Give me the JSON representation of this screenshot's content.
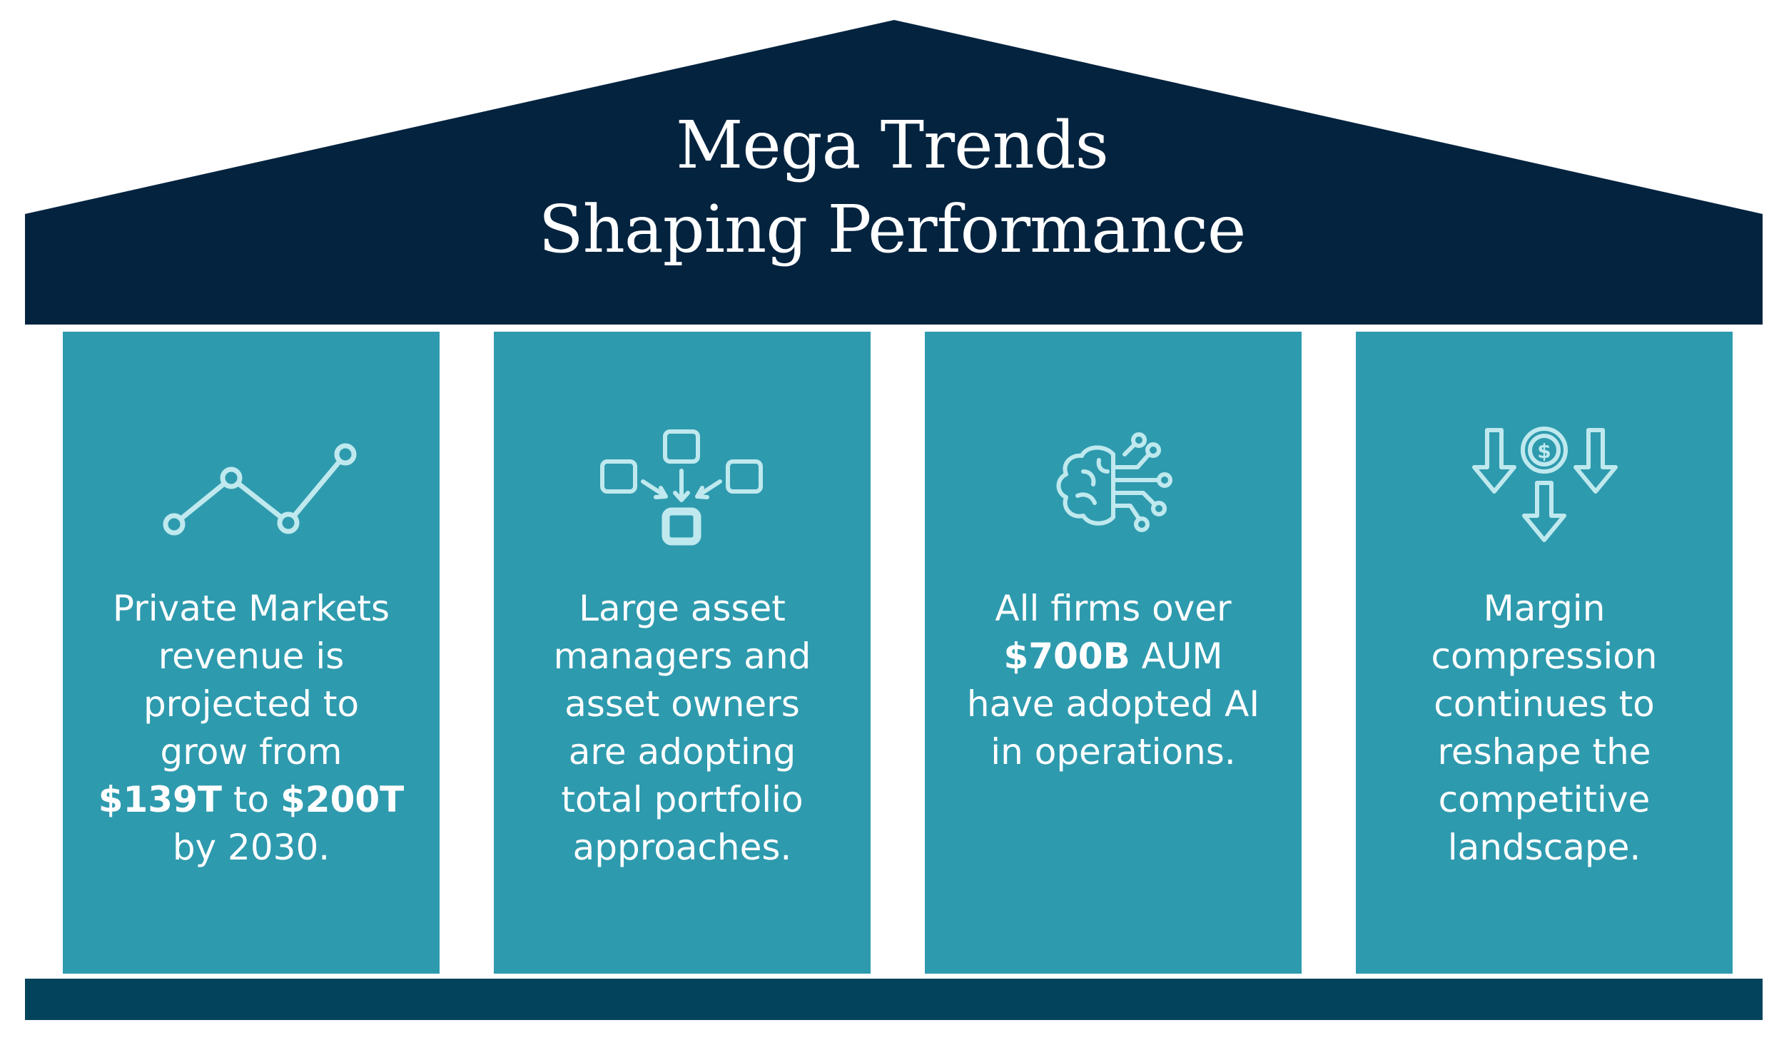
{
  "header": {
    "title_line1": "Mega Trends",
    "title_line2": "Shaping Performance"
  },
  "pillars": [
    {
      "icon": "line-chart-icon",
      "lines": [
        "Private Markets",
        "revenue is",
        "projected to",
        "grow from",
        {
          "bold1": "$139T",
          "mid": " to ",
          "bold2": "$200T"
        },
        "by 2030."
      ]
    },
    {
      "icon": "converging-blocks-icon",
      "lines": [
        "Large asset",
        "managers and",
        "asset owners",
        "are adopting",
        "total portfolio",
        "approaches."
      ]
    },
    {
      "icon": "ai-brain-icon",
      "lines": [
        "All firms over",
        {
          "bold1": "$700B",
          "mid": " AUM"
        },
        "have adopted AI",
        "in operations."
      ]
    },
    {
      "icon": "falling-dollar-icon",
      "lines": [
        "Margin",
        "compression",
        "continues to",
        "reshape the",
        "competitive",
        "landscape."
      ]
    }
  ],
  "colors": {
    "roof": "#03233f",
    "pillar": "#2e9aae",
    "base": "#04435c",
    "icon_stroke": "#bfe9ee"
  }
}
